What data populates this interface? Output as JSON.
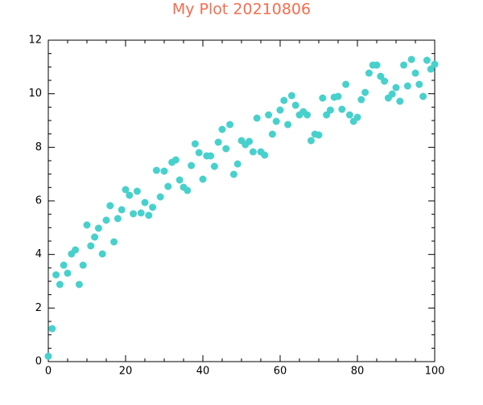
{
  "chart_data": {
    "type": "scatter",
    "title": "My Plot 20210806",
    "color": "#48d1cc",
    "x": [
      0,
      1,
      2,
      3,
      4,
      5,
      6,
      7,
      8,
      9,
      10,
      11,
      12,
      13,
      14,
      15,
      16,
      17,
      18,
      19,
      20,
      21,
      22,
      23,
      24,
      25,
      26,
      27,
      28,
      29,
      30,
      31,
      32,
      33,
      34,
      35,
      36,
      37,
      38,
      39,
      40,
      41,
      42,
      43,
      44,
      45,
      46,
      47,
      48,
      49,
      50,
      51,
      52,
      53,
      54,
      55,
      56,
      57,
      58,
      59,
      60,
      61,
      62,
      63,
      64,
      65,
      66,
      67,
      68,
      69,
      70,
      71,
      72,
      73,
      74,
      75,
      76,
      77,
      78,
      79,
      80,
      81,
      82,
      83,
      84,
      85,
      86,
      87,
      88,
      89,
      90,
      91,
      92,
      93,
      94,
      95,
      96,
      97,
      98,
      99,
      100
    ],
    "values": [
      0.2,
      1.23,
      3.24,
      2.88,
      3.6,
      3.3,
      4.02,
      4.17,
      2.88,
      3.6,
      5.1,
      4.32,
      4.65,
      4.98,
      4.02,
      5.28,
      5.82,
      4.47,
      5.34,
      5.67,
      6.42,
      6.21,
      5.52,
      6.36,
      5.55,
      5.94,
      5.46,
      5.76,
      7.14,
      6.15,
      7.11,
      6.54,
      7.44,
      7.53,
      6.78,
      6.51,
      6.39,
      7.32,
      8.13,
      7.8,
      6.81,
      7.68,
      7.68,
      7.29,
      8.19,
      8.67,
      7.95,
      8.85,
      6.99,
      7.38,
      8.25,
      8.1,
      8.22,
      7.83,
      9.09,
      7.83,
      7.71,
      9.21,
      8.49,
      8.97,
      9.39,
      9.75,
      8.85,
      9.93,
      9.57,
      9.21,
      9.33,
      9.21,
      8.25,
      8.49,
      8.46,
      9.84,
      9.21,
      9.39,
      9.87,
      9.9,
      9.42,
      10.35,
      9.21,
      8.97,
      9.12,
      9.78,
      10.05,
      10.77,
      11.07,
      11.07,
      10.65,
      10.47,
      9.84,
      9.99,
      10.23,
      9.72,
      11.07,
      10.29,
      11.28,
      10.77,
      10.35,
      9.9,
      11.25,
      10.92,
      11.1
    ],
    "xlim": [
      0,
      100
    ],
    "xticks": [
      0,
      20,
      40,
      60,
      80,
      100
    ],
    "ylim": [
      0,
      12
    ],
    "yticks": [
      0,
      2,
      4,
      6,
      8,
      10,
      12
    ]
  }
}
